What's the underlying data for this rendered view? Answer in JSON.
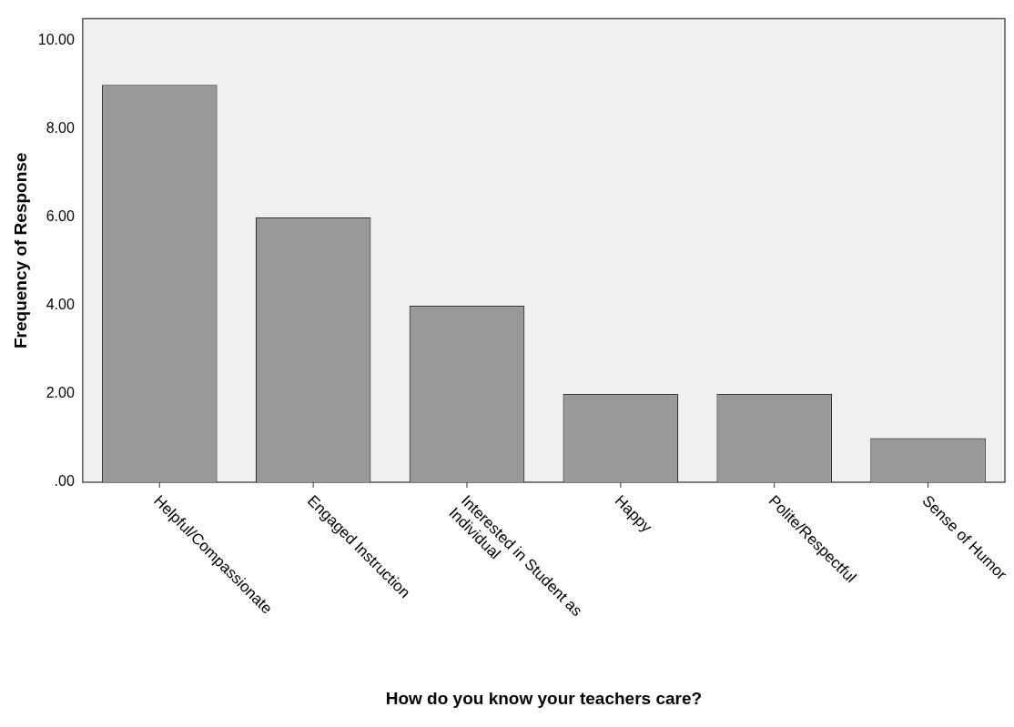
{
  "chart_data": {
    "type": "bar",
    "xlabel": "How do you know your teachers care?",
    "ylabel": "Frequency of Response",
    "categories": [
      "Helpful/Compassionate",
      "Engaged Instruction",
      "Interested in Student as Individual",
      "Happy",
      "Polite/Respectful",
      "Sense of Humor"
    ],
    "values": [
      9,
      6,
      4,
      2,
      2,
      1
    ],
    "color": "#999999",
    "ylim": [
      0,
      10.5
    ],
    "yticks": [
      {
        "value": 0,
        "label": ".00"
      },
      {
        "value": 2,
        "label": "2.00"
      },
      {
        "value": 4,
        "label": "4.00"
      },
      {
        "value": 6,
        "label": "6.00"
      },
      {
        "value": 8,
        "label": "8.00"
      },
      {
        "value": 10,
        "label": "10.00"
      }
    ],
    "grid": false
  }
}
